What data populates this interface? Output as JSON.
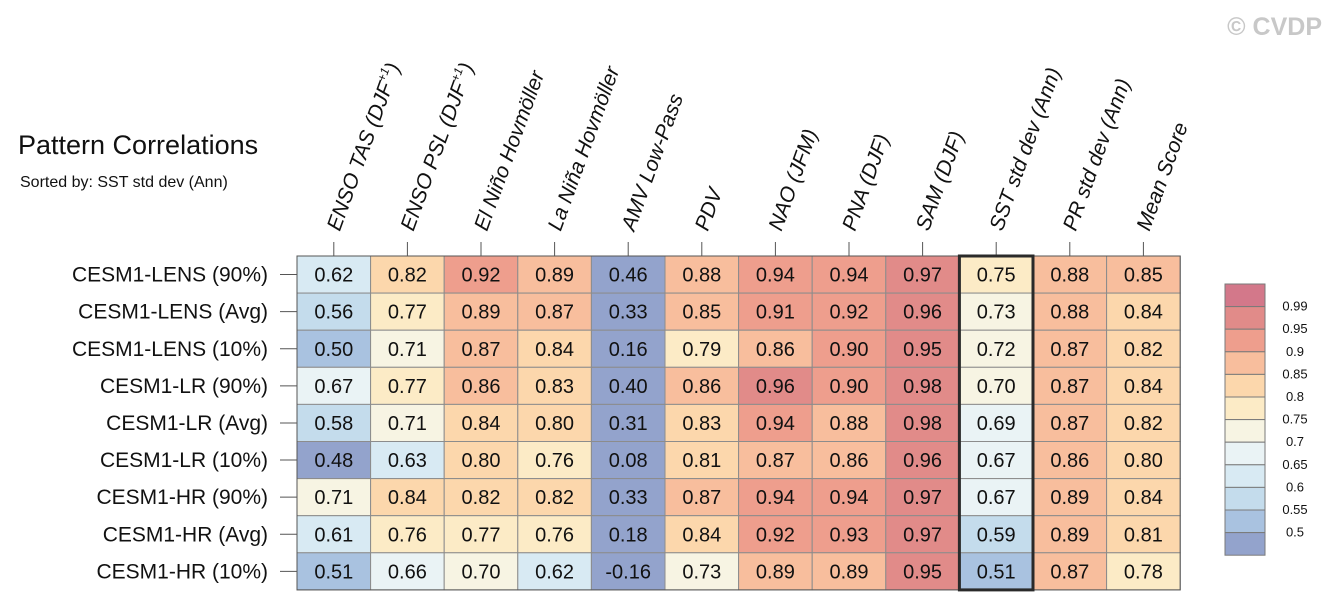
{
  "watermark": "© CVDP",
  "chart_data": {
    "type": "heatmap",
    "title": "Pattern Correlations",
    "subtitle": "Sorted by: SST std dev (Ann)",
    "highlight_column": "SST std dev (Ann)",
    "columns": [
      {
        "label": "ENSO TAS (DJF",
        "sup": "+1",
        "suffix": ")"
      },
      {
        "label": "ENSO PSL (DJF",
        "sup": "+1",
        "suffix": ")"
      },
      {
        "label": "El Niño Hovmöller",
        "sup": "",
        "suffix": ""
      },
      {
        "label": "La Niña Hovmöller",
        "sup": "",
        "suffix": ""
      },
      {
        "label": "AMV Low-Pass",
        "sup": "",
        "suffix": ""
      },
      {
        "label": "PDV",
        "sup": "",
        "suffix": ""
      },
      {
        "label": "NAO (JFM)",
        "sup": "",
        "suffix": ""
      },
      {
        "label": "PNA (DJF)",
        "sup": "",
        "suffix": ""
      },
      {
        "label": "SAM (DJF)",
        "sup": "",
        "suffix": ""
      },
      {
        "label": "SST std dev (Ann)",
        "sup": "",
        "suffix": ""
      },
      {
        "label": "PR std dev (Ann)",
        "sup": "",
        "suffix": ""
      },
      {
        "label": "Mean Score",
        "sup": "",
        "suffix": ""
      }
    ],
    "rows": [
      {
        "label": "CESM1-LENS (90%)",
        "values": [
          "0.62",
          "0.82",
          "0.92",
          "0.89",
          "0.46",
          "0.88",
          "0.94",
          "0.94",
          "0.97",
          "0.75",
          "0.88",
          "0.85"
        ]
      },
      {
        "label": "CESM1-LENS (Avg)",
        "values": [
          "0.56",
          "0.77",
          "0.89",
          "0.87",
          "0.33",
          "0.85",
          "0.91",
          "0.92",
          "0.96",
          "0.73",
          "0.88",
          "0.84"
        ]
      },
      {
        "label": "CESM1-LENS (10%)",
        "values": [
          "0.50",
          "0.71",
          "0.87",
          "0.84",
          "0.16",
          "0.79",
          "0.86",
          "0.90",
          "0.95",
          "0.72",
          "0.87",
          "0.82"
        ]
      },
      {
        "label": "CESM1-LR (90%)",
        "values": [
          "0.67",
          "0.77",
          "0.86",
          "0.83",
          "0.40",
          "0.86",
          "0.96",
          "0.90",
          "0.98",
          "0.70",
          "0.87",
          "0.84"
        ]
      },
      {
        "label": "CESM1-LR (Avg)",
        "values": [
          "0.58",
          "0.71",
          "0.84",
          "0.80",
          "0.31",
          "0.83",
          "0.94",
          "0.88",
          "0.98",
          "0.69",
          "0.87",
          "0.82"
        ]
      },
      {
        "label": "CESM1-LR (10%)",
        "values": [
          "0.48",
          "0.63",
          "0.80",
          "0.76",
          "0.08",
          "0.81",
          "0.87",
          "0.86",
          "0.96",
          "0.67",
          "0.86",
          "0.80"
        ]
      },
      {
        "label": "CESM1-HR (90%)",
        "values": [
          "0.71",
          "0.84",
          "0.82",
          "0.82",
          "0.33",
          "0.87",
          "0.94",
          "0.94",
          "0.97",
          "0.67",
          "0.89",
          "0.84"
        ]
      },
      {
        "label": "CESM1-HR (Avg)",
        "values": [
          "0.61",
          "0.76",
          "0.77",
          "0.76",
          "0.18",
          "0.84",
          "0.92",
          "0.93",
          "0.97",
          "0.59",
          "0.89",
          "0.81"
        ]
      },
      {
        "label": "CESM1-HR (10%)",
        "values": [
          "0.51",
          "0.66",
          "0.70",
          "0.62",
          "-0.16",
          "0.73",
          "0.89",
          "0.89",
          "0.95",
          "0.51",
          "0.87",
          "0.78"
        ]
      }
    ],
    "colorbar": {
      "labels": [
        "0.99",
        "0.95",
        "0.9",
        "0.85",
        "0.8",
        "0.75",
        "0.7",
        "0.65",
        "0.6",
        "0.55",
        "0.5"
      ],
      "thresholds": [
        0.5,
        0.55,
        0.6,
        0.65,
        0.7,
        0.75,
        0.8,
        0.85,
        0.9,
        0.95,
        0.99
      ],
      "colors": [
        "#93a3cc",
        "#a9c2e0",
        "#c4dcec",
        "#d8eaf3",
        "#eaf3f5",
        "#f7f4e3",
        "#fcebc6",
        "#fcd7ac",
        "#f8be9d",
        "#ee9e8d",
        "#e18b89",
        "#d3788a"
      ]
    }
  }
}
